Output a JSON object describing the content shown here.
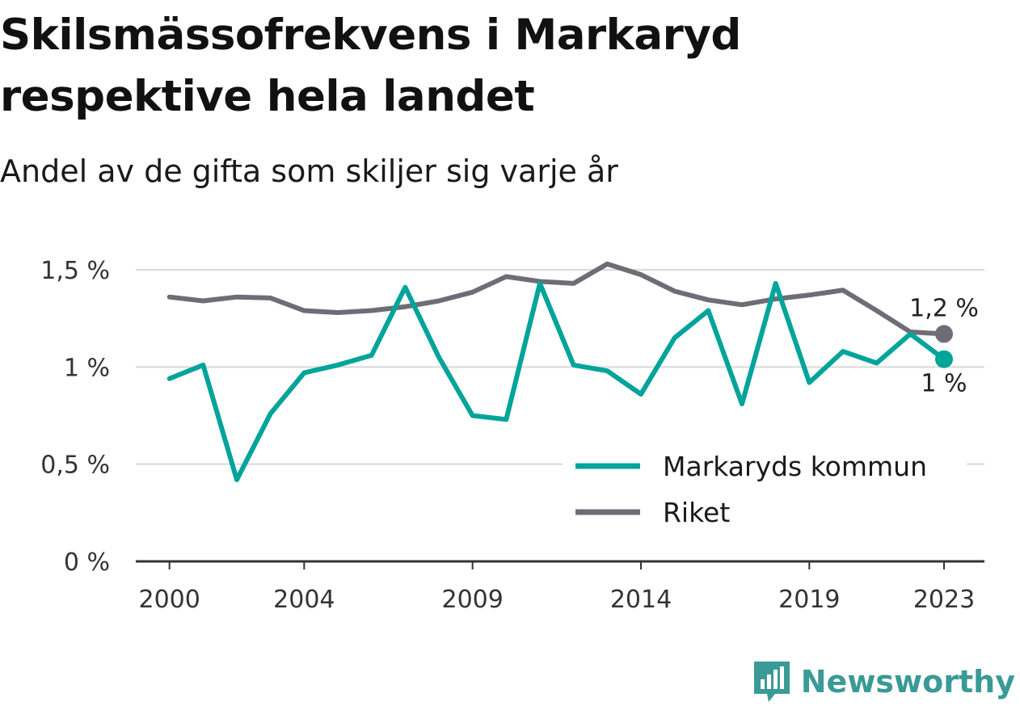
{
  "title": "Skilsmässofrekvens i Markaryd respektive hela landet",
  "subtitle": "Andel av de gifta som skiljer sig varje år",
  "brand": {
    "name": "Newsworthy",
    "icon": "newsworthy-logo-icon",
    "color": "#3a9a95"
  },
  "chart_data": {
    "type": "line",
    "x": [
      2000,
      2001,
      2002,
      2003,
      2004,
      2005,
      2006,
      2007,
      2008,
      2009,
      2010,
      2011,
      2012,
      2013,
      2014,
      2015,
      2016,
      2017,
      2018,
      2019,
      2020,
      2021,
      2022,
      2023
    ],
    "xlim": [
      1999,
      2024.2
    ],
    "ylim": [
      0,
      1.5
    ],
    "grid": true,
    "legend_position": "bottom-right",
    "x_ticks": [
      {
        "value": 2000,
        "label": "2000"
      },
      {
        "value": 2004,
        "label": "2004"
      },
      {
        "value": 2009,
        "label": "2009"
      },
      {
        "value": 2014,
        "label": "2014"
      },
      {
        "value": 2019,
        "label": "2019"
      },
      {
        "value": 2023,
        "label": "2023"
      }
    ],
    "y_ticks": [
      {
        "value": 0,
        "label": "0 %"
      },
      {
        "value": 0.5,
        "label": "0,5 %"
      },
      {
        "value": 1,
        "label": "1 %"
      },
      {
        "value": 1.5,
        "label": "1,5 %"
      }
    ],
    "series": [
      {
        "name": "Markaryds kommun",
        "color": "#00a49a",
        "end_label": "1 %",
        "values": [
          0.94,
          1.01,
          0.42,
          0.76,
          0.97,
          1.01,
          1.06,
          1.41,
          1.05,
          0.75,
          0.73,
          1.43,
          1.01,
          0.98,
          0.86,
          1.15,
          1.29,
          0.81,
          1.43,
          0.92,
          1.08,
          1.02,
          1.17,
          1.04
        ]
      },
      {
        "name": "Riket",
        "color": "#6e6d75",
        "end_label": "1,2 %",
        "values": [
          1.36,
          1.34,
          1.36,
          1.355,
          1.29,
          1.28,
          1.29,
          1.31,
          1.34,
          1.385,
          1.465,
          1.44,
          1.43,
          1.53,
          1.475,
          1.39,
          1.345,
          1.32,
          1.35,
          1.37,
          1.395,
          1.29,
          1.18,
          1.17
        ]
      }
    ]
  }
}
